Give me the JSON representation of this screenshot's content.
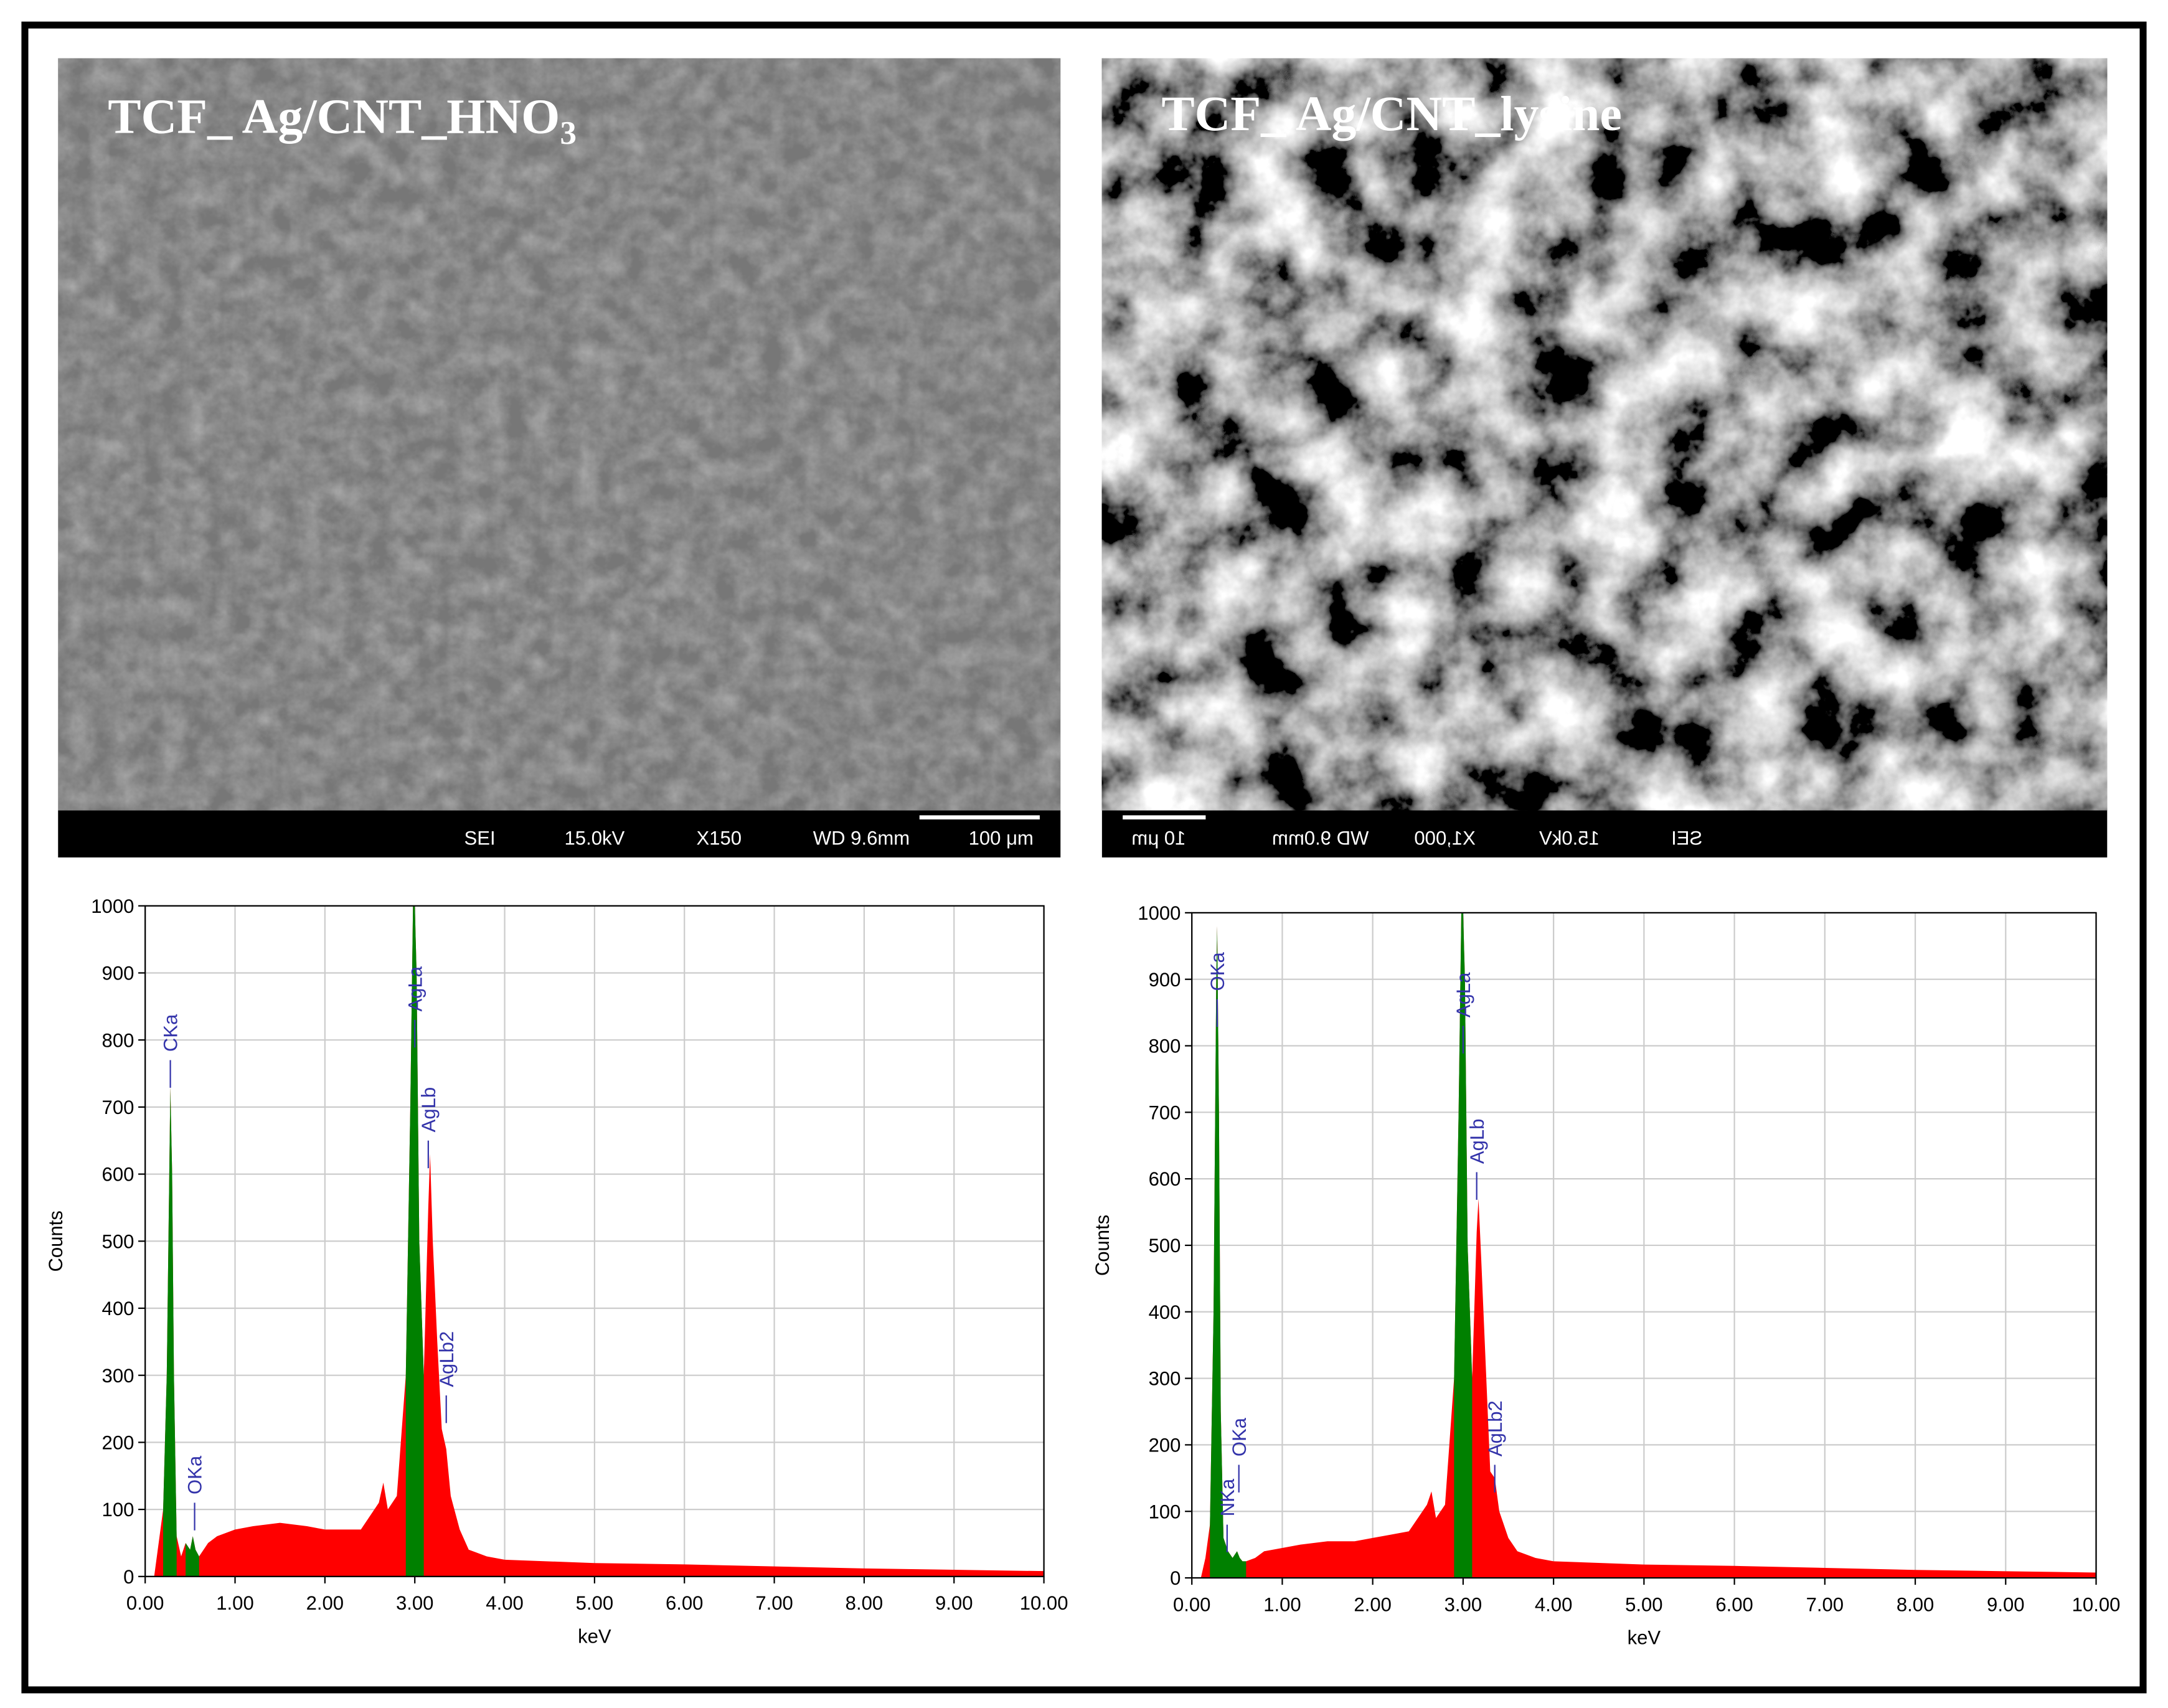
{
  "images": [
    {
      "label": "TCF_ Ag/CNT_HNO",
      "subscript": "3",
      "info": [
        "SEI",
        "15.0kV",
        "X150",
        "WD 9.6mm"
      ],
      "scale": "100 μm"
    },
    {
      "label": "TCF_ Ag/CNT_lysine",
      "info": [
        "SEI",
        "15.0kV",
        "X1,000",
        "WD 9.0mm"
      ],
      "scale": "10 μm"
    }
  ],
  "chart_data": [
    {
      "type": "area",
      "x_label": "keV",
      "y_label": "Counts",
      "grid": true,
      "x": [
        0.1,
        0.15,
        0.2,
        0.24,
        0.27,
        0.28,
        0.3,
        0.32,
        0.35,
        0.4,
        0.45,
        0.5,
        0.53,
        0.56,
        0.6,
        0.7,
        0.8,
        1.0,
        1.2,
        1.5,
        1.8,
        2.0,
        2.2,
        2.4,
        2.6,
        2.65,
        2.7,
        2.8,
        2.9,
        2.95,
        2.98,
        3.0,
        3.02,
        3.05,
        3.1,
        3.15,
        3.17,
        3.2,
        3.25,
        3.3,
        3.35,
        3.4,
        3.5,
        3.6,
        3.8,
        4.0,
        5.0,
        6.0,
        7.0,
        8.0,
        9.0,
        10.0
      ],
      "series": [
        {
          "color": "#ff0000",
          "values": [
            0,
            50,
            100,
            300,
            620,
            730,
            600,
            300,
            60,
            30,
            50,
            40,
            60,
            40,
            30,
            50,
            60,
            70,
            75,
            80,
            75,
            70,
            70,
            70,
            110,
            140,
            100,
            120,
            300,
            700,
            1000,
            1000,
            900,
            500,
            300,
            550,
            630,
            500,
            350,
            220,
            190,
            120,
            70,
            40,
            30,
            25,
            20,
            18,
            15,
            12,
            10,
            8
          ]
        },
        {
          "color": "#008000",
          "values": [
            null,
            null,
            100,
            300,
            620,
            730,
            600,
            300,
            60,
            null,
            50,
            40,
            60,
            40,
            30,
            null,
            null,
            null,
            null,
            null,
            null,
            null,
            null,
            null,
            null,
            null,
            null,
            null,
            300,
            700,
            1000,
            1000,
            900,
            500,
            300,
            null,
            null,
            null,
            null,
            null,
            null,
            null,
            null,
            null,
            null,
            null,
            null,
            null,
            null,
            null,
            null,
            null
          ]
        }
      ],
      "annotations": [
        {
          "text": "CKa",
          "x": 0.28,
          "y": 770
        },
        {
          "text": "OKa",
          "x": 0.55,
          "y": 110
        },
        {
          "text": "AgLa",
          "x": 3.0,
          "y": 830
        },
        {
          "text": "AgLb",
          "x": 3.15,
          "y": 650
        },
        {
          "text": "AgLb2",
          "x": 3.35,
          "y": 270
        }
      ],
      "xlim": [
        0,
        10
      ],
      "ylim": [
        0,
        1000
      ],
      "xticks": [
        {
          "value": 0,
          "label": "0.00"
        },
        {
          "value": 1,
          "label": "1.00"
        },
        {
          "value": 2,
          "label": "2.00"
        },
        {
          "value": 3,
          "label": "3.00"
        },
        {
          "value": 4,
          "label": "4.00"
        },
        {
          "value": 5,
          "label": "5.00"
        },
        {
          "value": 6,
          "label": "6.00"
        },
        {
          "value": 7,
          "label": "7.00"
        },
        {
          "value": 8,
          "label": "8.00"
        },
        {
          "value": 9,
          "label": "9.00"
        },
        {
          "value": 10,
          "label": "10.00"
        }
      ],
      "yticks": [
        0,
        100,
        200,
        300,
        400,
        500,
        600,
        700,
        800,
        900,
        1000
      ]
    },
    {
      "type": "area",
      "x_label": "keV",
      "y_label": "Counts",
      "grid": true,
      "x": [
        0.1,
        0.15,
        0.2,
        0.24,
        0.27,
        0.28,
        0.3,
        0.32,
        0.35,
        0.4,
        0.45,
        0.5,
        0.53,
        0.56,
        0.6,
        0.7,
        0.8,
        1.0,
        1.2,
        1.5,
        1.8,
        2.0,
        2.2,
        2.4,
        2.6,
        2.65,
        2.7,
        2.8,
        2.9,
        2.95,
        2.98,
        3.0,
        3.02,
        3.05,
        3.1,
        3.15,
        3.17,
        3.2,
        3.25,
        3.3,
        3.35,
        3.4,
        3.5,
        3.6,
        3.8,
        4.0,
        5.0,
        6.0,
        7.0,
        8.0,
        9.0,
        10.0
      ],
      "series": [
        {
          "color": "#ff0000",
          "values": [
            0,
            30,
            80,
            400,
            900,
            980,
            700,
            250,
            60,
            40,
            30,
            40,
            30,
            25,
            25,
            30,
            40,
            45,
            50,
            55,
            55,
            60,
            65,
            70,
            110,
            130,
            90,
            110,
            300,
            700,
            1000,
            1000,
            900,
            500,
            300,
            520,
            570,
            480,
            320,
            160,
            150,
            100,
            60,
            40,
            30,
            25,
            20,
            18,
            15,
            12,
            10,
            8
          ]
        },
        {
          "color": "#008000",
          "values": [
            null,
            null,
            80,
            400,
            900,
            980,
            700,
            250,
            60,
            40,
            30,
            40,
            30,
            25,
            25,
            null,
            null,
            null,
            null,
            null,
            null,
            null,
            null,
            null,
            null,
            null,
            null,
            null,
            300,
            700,
            1000,
            1000,
            900,
            500,
            300,
            null,
            null,
            null,
            null,
            null,
            null,
            null,
            null,
            null,
            null,
            null,
            null,
            null,
            null,
            null,
            null,
            null
          ]
        }
      ],
      "annotations": [
        {
          "text": "OKa",
          "x": 0.28,
          "y": 870
        },
        {
          "text": "NKa",
          "x": 0.39,
          "y": 80
        },
        {
          "text": "OKa",
          "x": 0.52,
          "y": 170
        },
        {
          "text": "AgLa",
          "x": 3.0,
          "y": 830
        },
        {
          "text": "AgLb",
          "x": 3.15,
          "y": 610
        },
        {
          "text": "AgLb2",
          "x": 3.35,
          "y": 170
        }
      ],
      "xlim": [
        0,
        10
      ],
      "ylim": [
        0,
        1000
      ],
      "xticks": [
        {
          "value": 0,
          "label": "0.00"
        },
        {
          "value": 1,
          "label": "1.00"
        },
        {
          "value": 2,
          "label": "2.00"
        },
        {
          "value": 3,
          "label": "3.00"
        },
        {
          "value": 4,
          "label": "4.00"
        },
        {
          "value": 5,
          "label": "5.00"
        },
        {
          "value": 6,
          "label": "6.00"
        },
        {
          "value": 7,
          "label": "7.00"
        },
        {
          "value": 8,
          "label": "8.00"
        },
        {
          "value": 9,
          "label": "9.00"
        },
        {
          "value": 10,
          "label": "10.00"
        }
      ],
      "yticks": [
        0,
        100,
        200,
        300,
        400,
        500,
        600,
        700,
        800,
        900,
        1000
      ]
    }
  ]
}
